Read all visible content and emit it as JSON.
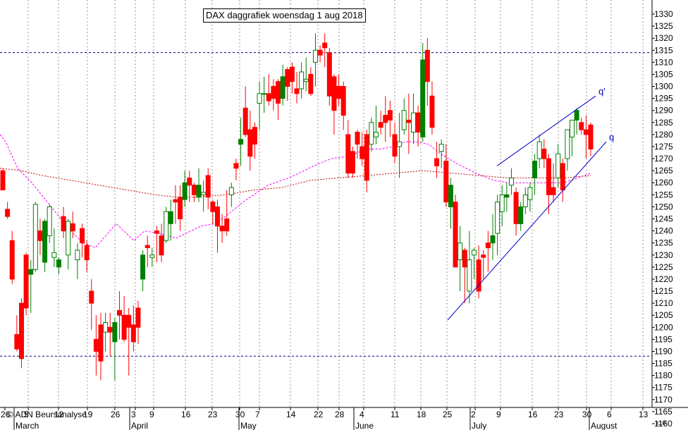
{
  "title": "DAX daggrafiek woensdag 1 aug 2018",
  "credit": "© ADN Beursanalyse",
  "multiplier_label": "x10",
  "colors": {
    "up": "#008000",
    "down": "#ff0000",
    "ma_short": "#ff00ff",
    "ma_long": "#c00000",
    "channel": "#0000cc",
    "horizontal": "#000080",
    "grid": "#999999"
  },
  "chart_data": {
    "type": "candlestick",
    "title": "DAX daggrafiek woensdag 1 aug 2018",
    "y_axis": {
      "position": "right",
      "range": [
        1160,
        1330
      ],
      "ticks": [
        1160,
        1165,
        1170,
        1175,
        1180,
        1185,
        1190,
        1195,
        1200,
        1205,
        1210,
        1215,
        1220,
        1225,
        1230,
        1235,
        1240,
        1245,
        1250,
        1255,
        1260,
        1265,
        1270,
        1275,
        1280,
        1285,
        1290,
        1295,
        1300,
        1305,
        1310,
        1315,
        1320,
        1325,
        1330
      ]
    },
    "x_axis": {
      "day_ticks": [
        "26",
        "5",
        "12",
        "19",
        "26",
        "3",
        "9",
        "16",
        "23",
        "30",
        "7",
        "14",
        "22",
        "28",
        "4",
        "11",
        "18",
        "25",
        "2",
        "9",
        "16",
        "23",
        "30",
        "6",
        "13"
      ],
      "months": [
        "March",
        "April",
        "May",
        "June",
        "July",
        "August"
      ]
    },
    "grid": "vertical dotted",
    "candles": [
      [
        1265,
        1266,
        1257,
        1257
      ],
      [
        1249,
        1252,
        1245,
        1246
      ],
      [
        1236,
        1240,
        1218,
        1220
      ],
      [
        1197,
        1205,
        1190,
        1191
      ],
      [
        1210,
        1212,
        1183,
        1187
      ],
      [
        1230,
        1231,
        1205,
        1208
      ],
      [
        1222,
        1228,
        1206,
        1224
      ],
      [
        1224,
        1252,
        1223,
        1251
      ],
      [
        1240,
        1245,
        1230,
        1236
      ],
      [
        1227,
        1245,
        1223,
        1244
      ],
      [
        1238,
        1251,
        1235,
        1250
      ],
      [
        1229,
        1241,
        1225,
        1231
      ],
      [
        1225,
        1229,
        1222,
        1228
      ],
      [
        1246,
        1250,
        1237,
        1240
      ],
      [
        1230,
        1245,
        1224,
        1244
      ],
      [
        1243,
        1248,
        1237,
        1240
      ],
      [
        1228,
        1235,
        1220,
        1232
      ],
      [
        1241,
        1243,
        1229,
        1235
      ],
      [
        1234,
        1236,
        1223,
        1228
      ],
      [
        1215,
        1220,
        1199,
        1210
      ],
      [
        1195,
        1205,
        1180,
        1190
      ],
      [
        1201,
        1206,
        1178,
        1186
      ],
      [
        1198,
        1206,
        1190,
        1202
      ],
      [
        1200,
        1206,
        1188,
        1198
      ],
      [
        1194,
        1204,
        1178,
        1202
      ],
      [
        1207,
        1215,
        1195,
        1205
      ],
      [
        1205,
        1213,
        1194,
        1195
      ],
      [
        1205,
        1208,
        1180,
        1200
      ],
      [
        1201,
        1209,
        1190,
        1194
      ],
      [
        1208,
        1211,
        1193,
        1200
      ],
      [
        1220,
        1232,
        1215,
        1230
      ],
      [
        1234,
        1238,
        1225,
        1233
      ],
      [
        1229,
        1233,
        1225,
        1230
      ],
      [
        1240,
        1242,
        1227,
        1239
      ],
      [
        1238,
        1243,
        1227,
        1230
      ],
      [
        1236,
        1250,
        1235,
        1248
      ],
      [
        1243,
        1253,
        1236,
        1248
      ],
      [
        1253,
        1259,
        1243,
        1252
      ],
      [
        1254,
        1259,
        1240,
        1245
      ],
      [
        1253,
        1265,
        1250,
        1260
      ],
      [
        1262,
        1265,
        1252,
        1259
      ],
      [
        1259,
        1260,
        1252,
        1255
      ],
      [
        1254,
        1266,
        1252,
        1259
      ],
      [
        1255,
        1261,
        1248,
        1256
      ],
      [
        1263,
        1266,
        1249,
        1254
      ],
      [
        1252,
        1253,
        1243,
        1248
      ],
      [
        1250,
        1253,
        1231,
        1242
      ],
      [
        1242,
        1247,
        1235,
        1240
      ],
      [
        1245,
        1257,
        1238,
        1240
      ],
      [
        1255,
        1260,
        1250,
        1258
      ],
      [
        1268,
        1270,
        1261,
        1266
      ],
      [
        1276,
        1287,
        1267,
        1278
      ],
      [
        1291,
        1300,
        1279,
        1280
      ],
      [
        1282,
        1290,
        1265,
        1271
      ],
      [
        1283,
        1285,
        1270,
        1276
      ],
      [
        1293,
        1302,
        1282,
        1297
      ],
      [
        1297,
        1304,
        1289,
        1297
      ],
      [
        1297,
        1305,
        1292,
        1294
      ],
      [
        1300,
        1303,
        1290,
        1295
      ],
      [
        1302,
        1303,
        1286,
        1293
      ],
      [
        1295,
        1309,
        1292,
        1304
      ],
      [
        1307,
        1308,
        1294,
        1300
      ],
      [
        1308,
        1310,
        1297,
        1302
      ],
      [
        1299,
        1306,
        1293,
        1297
      ],
      [
        1299,
        1310,
        1295,
        1306
      ],
      [
        1302,
        1312,
        1298,
        1303
      ],
      [
        1305,
        1308,
        1296,
        1297
      ],
      [
        1310,
        1322,
        1300,
        1315
      ],
      [
        1315,
        1317,
        1310,
        1313
      ],
      [
        1318,
        1322,
        1308,
        1316
      ],
      [
        1314,
        1316,
        1292,
        1296
      ],
      [
        1304,
        1305,
        1280,
        1290
      ],
      [
        1300,
        1305,
        1292,
        1295
      ],
      [
        1300,
        1302,
        1282,
        1288
      ],
      [
        1280,
        1286,
        1262,
        1264
      ],
      [
        1273,
        1275,
        1262,
        1264
      ],
      [
        1281,
        1282,
        1270,
        1276
      ],
      [
        1275,
        1281,
        1267,
        1270
      ],
      [
        1280,
        1282,
        1256,
        1261
      ],
      [
        1276,
        1287,
        1273,
        1285
      ],
      [
        1279,
        1292,
        1276,
        1281
      ],
      [
        1285,
        1290,
        1280,
        1283
      ],
      [
        1288,
        1296,
        1277,
        1285
      ],
      [
        1290,
        1294,
        1279,
        1286
      ],
      [
        1280,
        1285,
        1268,
        1271
      ],
      [
        1275,
        1289,
        1262,
        1277
      ],
      [
        1282,
        1295,
        1280,
        1290
      ],
      [
        1286,
        1297,
        1272,
        1285
      ],
      [
        1281,
        1297,
        1276,
        1289
      ],
      [
        1289,
        1292,
        1275,
        1281
      ],
      [
        1279,
        1318,
        1277,
        1311
      ],
      [
        1315,
        1320,
        1292,
        1302
      ],
      [
        1296,
        1302,
        1280,
        1283
      ],
      [
        1270,
        1277,
        1262,
        1267
      ],
      [
        1273,
        1278,
        1266,
        1276
      ],
      [
        1269,
        1276,
        1250,
        1252
      ],
      [
        1250,
        1262,
        1241,
        1259
      ],
      [
        1252,
        1255,
        1225,
        1225
      ],
      [
        1228,
        1242,
        1215,
        1235
      ],
      [
        1232,
        1233,
        1210,
        1225
      ],
      [
        1215,
        1240,
        1210,
        1228
      ],
      [
        1230,
        1233,
        1220,
        1232
      ],
      [
        1228,
        1234,
        1212,
        1215
      ],
      [
        1230,
        1232,
        1220,
        1229
      ],
      [
        1235,
        1240,
        1223,
        1233
      ],
      [
        1235,
        1247,
        1228,
        1238
      ],
      [
        1239,
        1255,
        1230,
        1252
      ],
      [
        1248,
        1259,
        1242,
        1255
      ],
      [
        1254,
        1260,
        1248,
        1255
      ],
      [
        1259,
        1266,
        1255,
        1262
      ],
      [
        1256,
        1258,
        1238,
        1243
      ],
      [
        1243,
        1252,
        1240,
        1250
      ],
      [
        1250,
        1258,
        1247,
        1255
      ],
      [
        1253,
        1260,
        1248,
        1258
      ],
      [
        1262,
        1272,
        1255,
        1269
      ],
      [
        1270,
        1280,
        1266,
        1277
      ],
      [
        1274,
        1278,
        1266,
        1270
      ],
      [
        1270,
        1272,
        1247,
        1255
      ],
      [
        1258,
        1268,
        1252,
        1255
      ],
      [
        1262,
        1276,
        1258,
        1272
      ],
      [
        1268,
        1270,
        1252,
        1257
      ],
      [
        1270,
        1281,
        1265,
        1282
      ],
      [
        1279,
        1286,
        1271,
        1286
      ],
      [
        1286,
        1291,
        1280,
        1290
      ],
      [
        1285,
        1287,
        1280,
        1282
      ],
      [
        1282,
        1288,
        1270,
        1280
      ],
      [
        1284,
        1285,
        1271,
        1274
      ]
    ],
    "moving_averages": [
      {
        "style": "dotted magenta",
        "points": [
          [
            0,
            1280
          ],
          [
            8,
            1277
          ],
          [
            25,
            1266
          ],
          [
            45,
            1260
          ],
          [
            70,
            1251
          ],
          [
            100,
            1240
          ],
          [
            118,
            1235
          ],
          [
            135,
            1233
          ],
          [
            165,
            1243
          ],
          [
            190,
            1236
          ],
          [
            205,
            1240
          ],
          [
            225,
            1239
          ],
          [
            250,
            1237
          ],
          [
            285,
            1242
          ],
          [
            305,
            1243
          ],
          [
            320,
            1246
          ],
          [
            345,
            1252
          ],
          [
            380,
            1259
          ],
          [
            410,
            1262
          ],
          [
            445,
            1267
          ],
          [
            470,
            1270
          ],
          [
            495,
            1271
          ],
          [
            520,
            1274
          ],
          [
            540,
            1274
          ],
          [
            558,
            1275
          ],
          [
            575,
            1277
          ],
          [
            590,
            1277
          ],
          [
            608,
            1276
          ],
          [
            625,
            1272
          ],
          [
            648,
            1268
          ],
          [
            675,
            1264
          ],
          [
            700,
            1261
          ],
          [
            720,
            1260
          ],
          [
            760,
            1260
          ],
          [
            800,
            1260
          ],
          [
            820,
            1262
          ],
          [
            838,
            1264
          ]
        ]
      },
      {
        "style": "dotted dark red",
        "points": [
          [
            0,
            1266
          ],
          [
            30,
            1265
          ],
          [
            60,
            1263
          ],
          [
            100,
            1261
          ],
          [
            140,
            1259
          ],
          [
            180,
            1257
          ],
          [
            220,
            1255
          ],
          [
            250,
            1254
          ],
          [
            280,
            1254
          ],
          [
            320,
            1255
          ],
          [
            360,
            1257
          ],
          [
            400,
            1258
          ],
          [
            440,
            1261
          ],
          [
            480,
            1262
          ],
          [
            520,
            1263
          ],
          [
            560,
            1264
          ],
          [
            600,
            1265
          ],
          [
            640,
            1264
          ],
          [
            680,
            1263
          ],
          [
            720,
            1262
          ],
          [
            760,
            1262
          ],
          [
            800,
            1262
          ],
          [
            838,
            1263
          ]
        ]
      }
    ],
    "trendlines": [
      {
        "label": "q'",
        "from": [
          705,
          1267
        ],
        "to": [
          845,
          1296
        ]
      },
      {
        "label": "q",
        "from": [
          635,
          1203
        ],
        "to": [
          860,
          1277
        ]
      },
      {
        "label": "",
        "from": [
          0,
          1314
        ],
        "to": [
          925,
          1314
        ],
        "style": "dashed horizontal"
      },
      {
        "label": "",
        "from": [
          0,
          1188
        ],
        "to": [
          925,
          1188
        ],
        "style": "dashed horizontal"
      }
    ]
  }
}
